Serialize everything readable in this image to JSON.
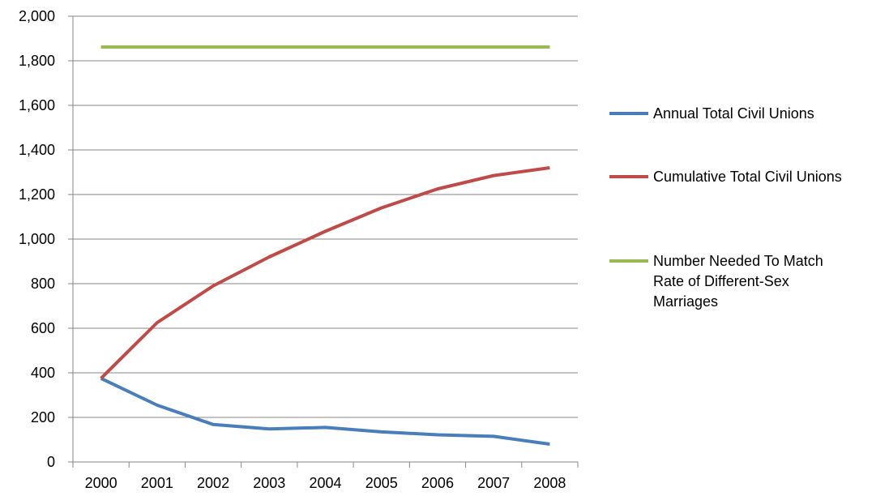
{
  "chart_data": {
    "type": "line",
    "title": "",
    "xlabel": "",
    "ylabel": "",
    "categories": [
      "2000",
      "2001",
      "2002",
      "2003",
      "2004",
      "2005",
      "2006",
      "2007",
      "2008"
    ],
    "ylim": [
      0,
      2000
    ],
    "y_ticks": [
      0,
      200,
      400,
      600,
      800,
      1000,
      1200,
      1400,
      1600,
      1800,
      2000
    ],
    "y_tick_labels": [
      "0",
      "200",
      "400",
      "600",
      "800",
      "1,000",
      "1,200",
      "1,400",
      "1,600",
      "1,800",
      "2,000"
    ],
    "grid": "horizontal",
    "legend_position": "right",
    "series": [
      {
        "name": "Annual Total  Civil Unions",
        "legend_lines": [
          "Annual Total  Civil Unions"
        ],
        "color": "#4a7ebb",
        "values": [
          375,
          255,
          168,
          148,
          155,
          135,
          122,
          115,
          80
        ]
      },
      {
        "name": "Cumulative Total  Civil Unions",
        "legend_lines": [
          "Cumulative Total  Civil Unions"
        ],
        "color": "#be4b48",
        "values": [
          375,
          625,
          790,
          920,
          1035,
          1140,
          1225,
          1285,
          1320
        ]
      },
      {
        "name": "Number Needed To Match Rate of Different-Sex Marriages",
        "legend_lines": [
          "Number Needed To Match",
          "Rate of Different-Sex",
          "Marriages"
        ],
        "color": "#98b954",
        "values": [
          1862,
          1862,
          1862,
          1862,
          1862,
          1862,
          1862,
          1862,
          1862
        ]
      }
    ]
  }
}
